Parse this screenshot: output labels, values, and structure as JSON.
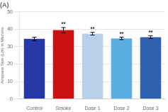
{
  "chart_data": {
    "type": "bar",
    "title": "(A)",
    "categories": [
      "Control",
      "Smoke",
      "Dose 1",
      "Dose 2",
      "Dose 3"
    ],
    "values": [
      34.5,
      39.5,
      37.5,
      34.8,
      35.5
    ],
    "errors": [
      1.0,
      1.5,
      0.8,
      0.7,
      0.8
    ],
    "colors": [
      "#2638a8",
      "#cc1111",
      "#b8cfe8",
      "#5aaee0",
      "#3060b0"
    ],
    "annotations": [
      {
        "category": "Smoke",
        "text": "**"
      },
      {
        "category": "Dose 1",
        "text": "**"
      },
      {
        "category": "Dose 2",
        "text": "**"
      },
      {
        "category": "Dose 3",
        "text": "**"
      }
    ],
    "ylabel": "Airspace Size (Lm) in Microns",
    "ylim": [
      0,
      50
    ],
    "yticks": [
      0,
      10,
      20,
      30,
      40,
      50
    ],
    "grid": true
  }
}
